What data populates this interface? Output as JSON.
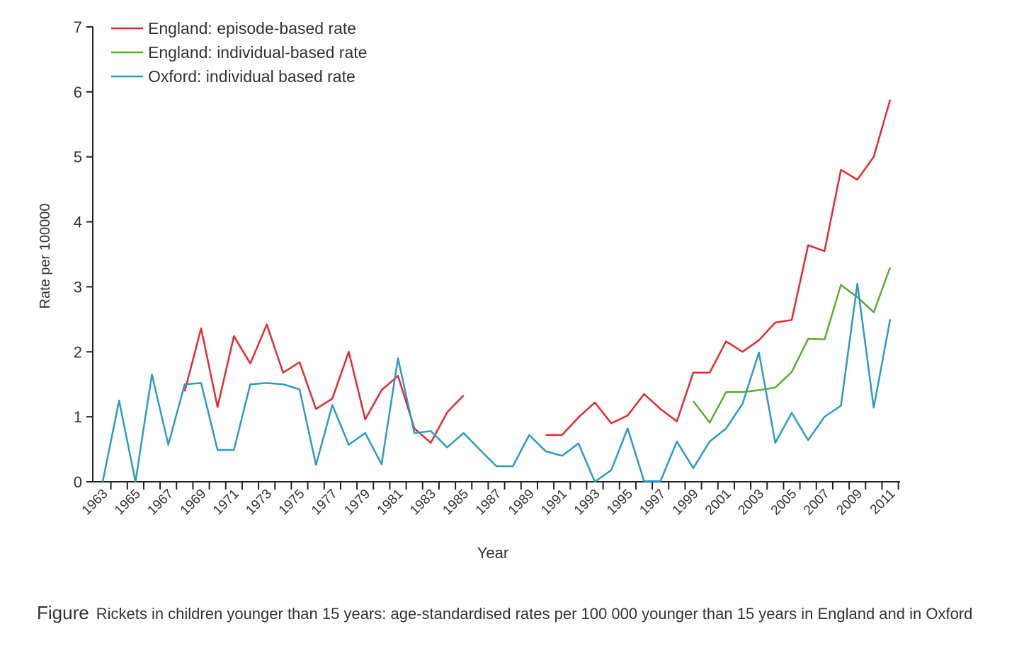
{
  "chart_data": {
    "type": "line",
    "title": "",
    "xlabel": "Year",
    "ylabel": "Rate per 100000",
    "ylim": [
      0,
      7
    ],
    "yticks": [
      "0",
      "1",
      "2",
      "3",
      "4",
      "5",
      "6",
      "7"
    ],
    "xlim": [
      1963,
      2011
    ],
    "xtick_labels": [
      "1963",
      "1965",
      "1967",
      "1969",
      "1971",
      "1973",
      "1975",
      "1977",
      "1979",
      "1981",
      "1983",
      "1985",
      "1987",
      "1989",
      "1991",
      "1993",
      "1995",
      "1997",
      "1999",
      "2001",
      "2003",
      "2005",
      "2007",
      "2009",
      "2011"
    ],
    "grid": false,
    "legend_position": "top-left",
    "series": [
      {
        "name": "England: episode-based rate",
        "color": "#e42a2f",
        "segments": [
          {
            "x": [
              1968,
              1969,
              1970,
              1971,
              1972,
              1973,
              1974,
              1975,
              1976,
              1977,
              1978,
              1979,
              1980,
              1981,
              1982,
              1983,
              1984,
              1985
            ],
            "y": [
              1.39,
              2.36,
              1.15,
              2.24,
              1.82,
              2.42,
              1.68,
              1.84,
              1.12,
              1.28,
              2.0,
              0.96,
              1.41,
              1.63,
              0.82,
              0.6,
              1.07,
              1.33
            ]
          },
          {
            "x": [
              1990,
              1991,
              1992,
              1993,
              1994,
              1995,
              1996,
              1997,
              1998,
              1999,
              2000,
              2001,
              2002,
              2003,
              2004,
              2005,
              2006,
              2007,
              2008,
              2009,
              2010,
              2011
            ],
            "y": [
              0.72,
              0.72,
              0.99,
              1.22,
              0.9,
              1.02,
              1.35,
              1.12,
              0.93,
              1.68,
              1.68,
              2.16,
              2.0,
              2.18,
              2.45,
              2.49,
              3.64,
              3.55,
              4.8,
              4.65,
              5.0,
              5.88
            ]
          }
        ]
      },
      {
        "name": "England: individual-based rate",
        "color": "#5aac32",
        "segments": [
          {
            "x": [
              1999,
              2000,
              2001,
              2002,
              2003,
              2004,
              2005,
              2006,
              2007,
              2008,
              2009,
              2010,
              2011
            ],
            "y": [
              1.24,
              0.91,
              1.38,
              1.38,
              1.41,
              1.45,
              1.69,
              2.2,
              2.19,
              3.03,
              2.84,
              2.61,
              3.3
            ]
          }
        ]
      },
      {
        "name": "Oxford: individual based rate",
        "color": "#2b9ac6",
        "segments": [
          {
            "x": [
              1963,
              1964,
              1965,
              1966,
              1967,
              1968,
              1969,
              1970,
              1971,
              1972,
              1973,
              1974,
              1975,
              1976,
              1977,
              1978,
              1979,
              1980,
              1981,
              1982,
              1983,
              1984,
              1985,
              1986,
              1987,
              1988,
              1989,
              1990,
              1991,
              1992,
              1993,
              1994,
              1995,
              1996,
              1997,
              1998,
              1999,
              2000,
              2001,
              2002,
              2003,
              2004,
              2005,
              2006,
              2007,
              2008,
              2009,
              2010,
              2011
            ],
            "y": [
              0,
              1.25,
              0,
              1.65,
              0.57,
              1.5,
              1.52,
              0.49,
              0.49,
              1.5,
              1.52,
              1.5,
              1.42,
              0.26,
              1.18,
              0.57,
              0.75,
              0.27,
              1.9,
              0.75,
              0.78,
              0.53,
              0.75,
              0.49,
              0.24,
              0.24,
              0.72,
              0.47,
              0.4,
              0.59,
              0,
              0.18,
              0.82,
              0.01,
              0.01,
              0.62,
              0.21,
              0.62,
              0.82,
              1.2,
              1.99,
              0.6,
              1.06,
              0.64,
              1.0,
              1.17,
              3.05,
              1.14,
              2.5
            ]
          }
        ]
      }
    ]
  },
  "caption": {
    "label": "Figure",
    "text": "Rickets in children younger than 15 years: age-standardised rates per 100 000 younger than 15 years in England and in Oxford"
  }
}
